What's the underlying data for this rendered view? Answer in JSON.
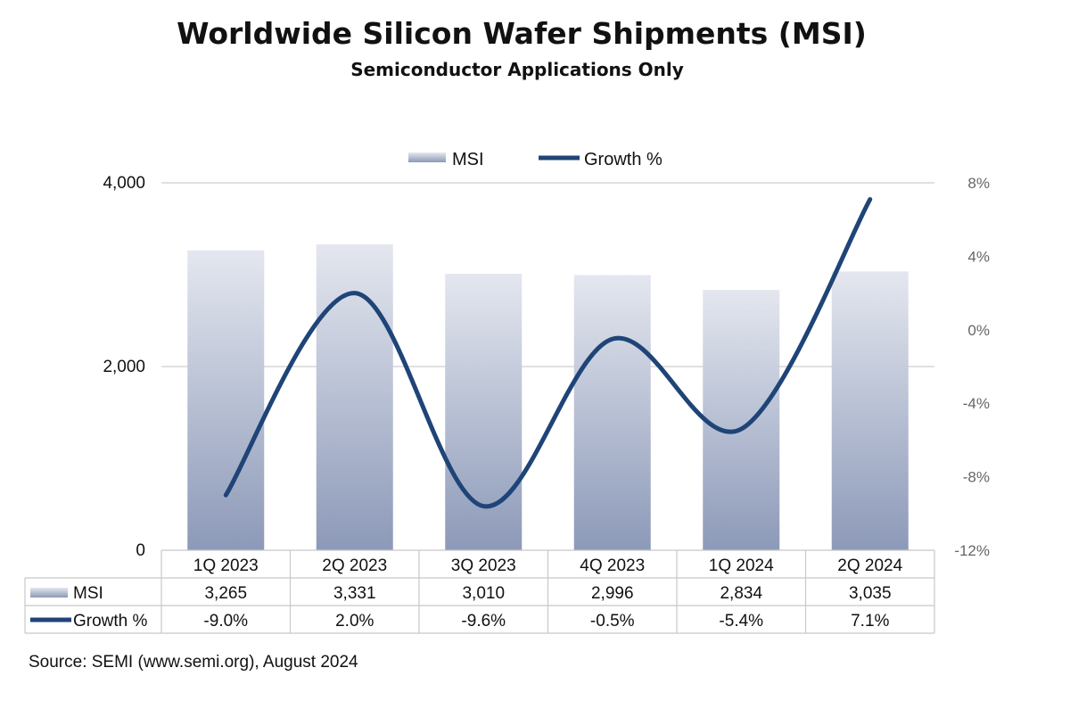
{
  "chart_data": {
    "type": "bar",
    "title": "Worldwide Silicon Wafer Shipments (MSI)",
    "subtitle": "Semiconductor Applications Only",
    "categories": [
      "1Q 2023",
      "2Q 2023",
      "3Q 2023",
      "4Q 2023",
      "1Q 2024",
      "2Q 2024"
    ],
    "series": [
      {
        "name": "MSI",
        "type": "bar",
        "axis": "left",
        "values": [
          3265,
          3331,
          3010,
          2996,
          2834,
          3035
        ],
        "labels": [
          "3,265",
          "3,331",
          "3,010",
          "2,996",
          "2,834",
          "3,035"
        ],
        "color_top": "#e4e7ef",
        "color_bottom": "#8c99b8"
      },
      {
        "name": "Growth %",
        "type": "line",
        "axis": "right",
        "values": [
          -9.0,
          2.0,
          -9.6,
          -0.5,
          -5.4,
          7.1
        ],
        "labels": [
          "-9.0%",
          "2.0%",
          "-9.6%",
          "-0.5%",
          "-5.4%",
          "7.1%"
        ],
        "color": "#1f4477"
      }
    ],
    "y_left": {
      "min": 0,
      "max": 4000,
      "ticks": [
        0,
        2000,
        4000
      ],
      "tick_labels": [
        "0",
        "2,000",
        "4,000"
      ]
    },
    "y_right": {
      "min": -12,
      "max": 8,
      "ticks": [
        -12,
        -8,
        -4,
        0,
        4,
        8
      ],
      "tick_labels": [
        "-12%",
        "-8%",
        "-4%",
        "0%",
        "4%",
        "8%"
      ]
    },
    "grid": true,
    "legend_position": "top-center",
    "data_table": true,
    "source": "Source: SEMI (www.semi.org), August 2024"
  }
}
